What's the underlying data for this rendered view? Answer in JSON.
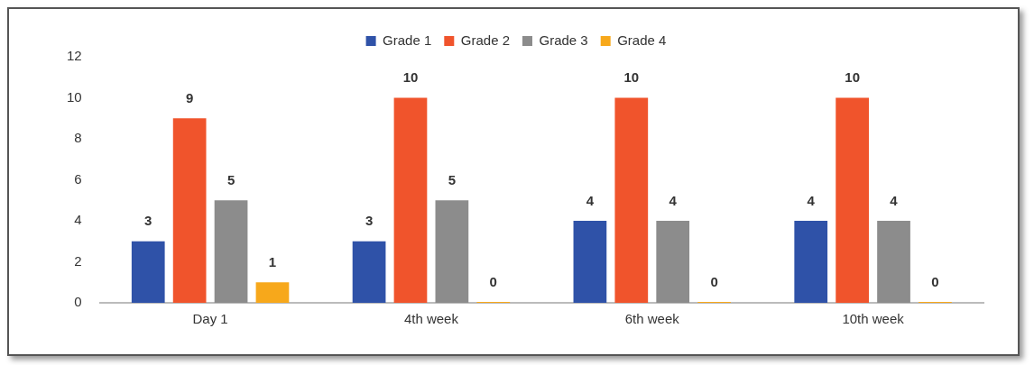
{
  "chart_data": {
    "type": "bar",
    "categories": [
      "Day 1",
      "4th week",
      "6th week",
      "10th week"
    ],
    "series": [
      {
        "name": "Grade 1",
        "color": "#2f52a8",
        "values": [
          3,
          3,
          4,
          4
        ]
      },
      {
        "name": "Grade 2",
        "color": "#f0542c",
        "values": [
          9,
          10,
          10,
          10
        ]
      },
      {
        "name": "Grade 3",
        "color": "#8c8c8c",
        "values": [
          5,
          5,
          4,
          4
        ]
      },
      {
        "name": "Grade 4",
        "color": "#f7a81b",
        "values": [
          1,
          0,
          0,
          0
        ]
      }
    ],
    "ylim": [
      0,
      12
    ],
    "yticks": [
      0,
      2,
      4,
      6,
      8,
      10,
      12
    ],
    "grid": false,
    "legend": "top",
    "data_labels": true
  }
}
